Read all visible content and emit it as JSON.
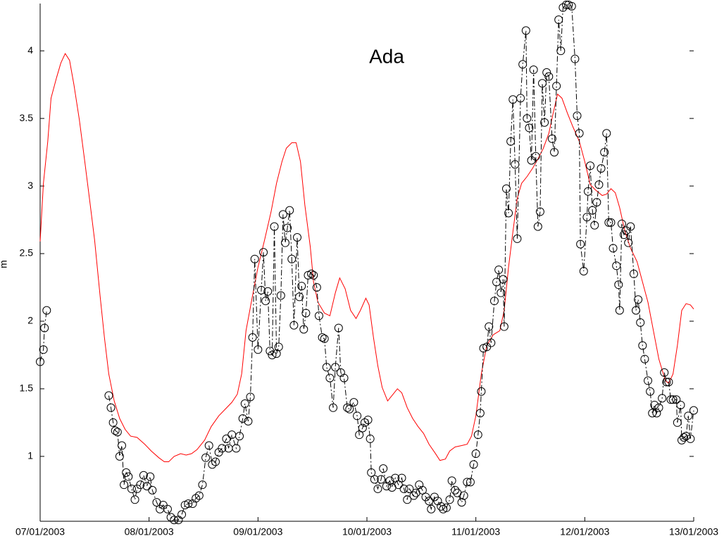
{
  "chart_data": {
    "type": "line",
    "title": "Ada",
    "y_label": "m",
    "xlim": [
      0,
      6
    ],
    "ylim": [
      0.52,
      4.35
    ],
    "xticks": [
      {
        "value": 0,
        "label": "07/01/2003"
      },
      {
        "value": 1,
        "label": "08/01/2003"
      },
      {
        "value": 2,
        "label": "09/01/2003"
      },
      {
        "value": 3,
        "label": "10/01/2003"
      },
      {
        "value": 4,
        "label": "11/01/2003"
      },
      {
        "value": 5,
        "label": "12/01/2003"
      },
      {
        "value": 6,
        "label": "13/01/2003"
      }
    ],
    "yticks": [
      1,
      1.5,
      2,
      2.5,
      3,
      3.5,
      4
    ],
    "series": [
      {
        "color": "#ff0000",
        "style": "solid",
        "marker": "none",
        "x": [
          0,
          0.03,
          0.07,
          0.1,
          0.15,
          0.19,
          0.23,
          0.27,
          0.31,
          0.36,
          0.41,
          0.46,
          0.5,
          0.55,
          0.59,
          0.63,
          0.68,
          0.73,
          0.78,
          0.83,
          0.89,
          0.96,
          1.02,
          1.09,
          1.14,
          1.18,
          1.23,
          1.29,
          1.34,
          1.39,
          1.44,
          1.51,
          1.57,
          1.64,
          1.7,
          1.76,
          1.81,
          1.85,
          1.89,
          1.95,
          2.0,
          2.06,
          2.12,
          2.17,
          2.22,
          2.26,
          2.31,
          2.35,
          2.39,
          2.43,
          2.48,
          2.51,
          2.55,
          2.61,
          2.66,
          2.71,
          2.75,
          2.8,
          2.85,
          2.9,
          2.94,
          2.99,
          3.02,
          3.06,
          3.1,
          3.14,
          3.19,
          3.23,
          3.28,
          3.32,
          3.37,
          3.42,
          3.47,
          3.52,
          3.57,
          3.63,
          3.67,
          3.72,
          3.76,
          3.81,
          3.87,
          3.92,
          3.96,
          4.0,
          4.05,
          4.1,
          4.16,
          4.22,
          4.26,
          4.3,
          4.34,
          4.38,
          4.42,
          4.47,
          4.52,
          4.57,
          4.62,
          4.67,
          4.71,
          4.75,
          4.79,
          4.84,
          4.89,
          4.95,
          5.0,
          5.05,
          5.1,
          5.16,
          5.2,
          5.24,
          5.28,
          5.32,
          5.37,
          5.42,
          5.48,
          5.53,
          5.58,
          5.63,
          5.68,
          5.74,
          5.77,
          5.81,
          5.85,
          5.89,
          5.93,
          5.97,
          6.0
        ],
        "values": [
          2.59,
          3.02,
          3.33,
          3.65,
          3.8,
          3.91,
          3.98,
          3.93,
          3.75,
          3.49,
          3.18,
          2.86,
          2.6,
          2.19,
          1.88,
          1.61,
          1.41,
          1.28,
          1.2,
          1.15,
          1.14,
          1.09,
          1.04,
          0.99,
          0.96,
          0.96,
          1.0,
          1.02,
          1.01,
          1.02,
          1.05,
          1.12,
          1.22,
          1.3,
          1.35,
          1.4,
          1.46,
          1.61,
          1.93,
          2.19,
          2.4,
          2.6,
          2.81,
          3.02,
          3.18,
          3.28,
          3.32,
          3.32,
          3.18,
          2.86,
          2.55,
          2.29,
          2.14,
          2.06,
          2.04,
          2.21,
          2.32,
          2.24,
          2.08,
          2.02,
          2.08,
          2.17,
          2.12,
          1.88,
          1.67,
          1.51,
          1.41,
          1.45,
          1.5,
          1.47,
          1.36,
          1.28,
          1.22,
          1.17,
          1.09,
          1.02,
          0.97,
          0.98,
          1.04,
          1.07,
          1.08,
          1.09,
          1.15,
          1.3,
          1.61,
          1.82,
          1.9,
          1.93,
          2.08,
          2.4,
          2.66,
          2.91,
          3.02,
          3.07,
          3.13,
          3.2,
          3.28,
          3.39,
          3.54,
          3.68,
          3.65,
          3.54,
          3.44,
          3.33,
          3.18,
          3.01,
          2.97,
          2.93,
          2.94,
          2.98,
          2.95,
          2.84,
          2.66,
          2.54,
          2.44,
          2.29,
          2.14,
          1.93,
          1.72,
          1.56,
          1.54,
          1.61,
          1.82,
          2.08,
          2.13,
          2.12,
          2.09
        ]
      },
      {
        "color": "#000000",
        "style": "dashdot",
        "marker": "circle",
        "x": [
          0,
          0.03,
          0.04,
          0.06,
          0.3,
          0.63,
          0.65,
          0.67,
          0.69,
          0.71,
          0.73,
          0.75,
          0.77,
          0.79,
          0.81,
          0.84,
          0.87,
          0.89,
          0.92,
          0.95,
          0.98,
          1.01,
          1.03,
          1.07,
          1.1,
          1.13,
          1.17,
          1.2,
          1.23,
          1.27,
          1.3,
          1.33,
          1.36,
          1.4,
          1.43,
          1.46,
          1.49,
          1.52,
          1.55,
          1.58,
          1.61,
          1.64,
          1.67,
          1.71,
          1.73,
          1.76,
          1.8,
          1.83,
          1.86,
          1.88,
          1.91,
          1.93,
          1.95,
          1.97,
          2.0,
          2.03,
          2.05,
          2.07,
          2.09,
          2.11,
          2.13,
          2.15,
          2.17,
          2.19,
          2.21,
          2.23,
          2.25,
          2.27,
          2.29,
          2.31,
          2.33,
          2.36,
          2.38,
          2.4,
          2.42,
          2.44,
          2.46,
          2.49,
          2.51,
          2.54,
          2.56,
          2.59,
          2.61,
          2.63,
          2.66,
          2.69,
          2.71,
          2.74,
          2.76,
          2.79,
          2.82,
          2.84,
          2.88,
          2.91,
          2.93,
          2.96,
          2.98,
          3.01,
          3.03,
          3.04,
          3.07,
          3.1,
          3.13,
          3.15,
          3.18,
          3.21,
          3.23,
          3.26,
          3.29,
          3.32,
          3.34,
          3.37,
          3.39,
          3.43,
          3.45,
          3.48,
          3.51,
          3.54,
          3.57,
          3.59,
          3.62,
          3.65,
          3.68,
          3.7,
          3.73,
          3.76,
          3.78,
          3.81,
          3.83,
          3.87,
          3.89,
          3.92,
          3.95,
          3.98,
          4.0,
          4.02,
          4.04,
          4.05,
          4.07,
          4.1,
          4.12,
          4.14,
          4.17,
          4.19,
          4.21,
          4.23,
          4.25,
          4.26,
          4.28,
          4.3,
          4.32,
          4.34,
          4.36,
          4.38,
          4.41,
          4.43,
          4.46,
          4.47,
          4.49,
          4.51,
          4.53,
          4.55,
          4.57,
          4.59,
          4.61,
          4.63,
          4.65,
          4.67,
          4.7,
          4.72,
          4.74,
          4.76,
          4.78,
          4.8,
          4.83,
          4.85,
          4.88,
          4.91,
          4.93,
          4.95,
          4.96,
          4.99,
          5.02,
          5.03,
          5.05,
          5.07,
          5.09,
          5.11,
          5.13,
          5.15,
          5.18,
          5.2,
          5.22,
          5.24,
          5.26,
          5.29,
          5.31,
          5.32,
          5.34,
          5.36,
          5.38,
          5.4,
          5.42,
          5.45,
          5.47,
          5.49,
          5.51,
          5.53,
          5.55,
          5.58,
          5.6,
          5.62,
          5.64,
          5.66,
          5.68,
          5.71,
          5.73,
          5.75,
          5.77,
          5.79,
          5.81,
          5.84,
          5.85,
          5.88,
          5.89,
          5.91,
          5.93,
          5.95,
          5.97,
          6.0
        ],
        "values": [
          1.7,
          1.79,
          1.95,
          2.08,
          null,
          1.45,
          1.36,
          1.25,
          1.19,
          1.18,
          1.0,
          1.08,
          0.79,
          0.88,
          0.85,
          0.76,
          0.68,
          0.76,
          0.79,
          0.86,
          0.78,
          0.85,
          0.75,
          0.66,
          0.61,
          0.64,
          0.61,
          0.55,
          0.53,
          0.53,
          0.57,
          0.64,
          0.65,
          0.65,
          0.69,
          0.71,
          0.79,
          0.99,
          1.08,
          0.94,
          0.96,
          1.03,
          1.06,
          1.13,
          1.06,
          1.16,
          1.06,
          1.15,
          1.28,
          1.39,
          1.26,
          1.44,
          1.88,
          2.46,
          1.79,
          2.23,
          2.51,
          2.15,
          2.22,
          1.78,
          1.75,
          2.7,
          1.76,
          1.81,
          2.19,
          2.79,
          2.58,
          2.69,
          2.82,
          2.46,
          1.97,
          2.62,
          2.18,
          2.26,
          1.94,
          2.06,
          2.34,
          2.35,
          2.34,
          2.25,
          2.04,
          1.88,
          1.87,
          1.66,
          1.58,
          1.36,
          1.66,
          1.95,
          1.62,
          1.58,
          1.36,
          1.35,
          1.4,
          1.3,
          1.16,
          1.21,
          1.25,
          1.27,
          1.13,
          0.88,
          0.83,
          0.76,
          0.83,
          0.91,
          0.78,
          0.82,
          0.77,
          0.84,
          0.79,
          0.84,
          0.76,
          0.68,
          0.76,
          0.71,
          0.73,
          0.79,
          0.75,
          0.7,
          0.67,
          0.61,
          0.7,
          0.67,
          0.63,
          0.61,
          0.62,
          0.68,
          0.82,
          0.75,
          0.73,
          0.66,
          0.71,
          0.81,
          0.81,
          0.94,
          1.02,
          1.16,
          1.32,
          1.48,
          1.8,
          1.81,
          1.96,
          1.84,
          2.15,
          2.29,
          2.38,
          2.21,
          2.31,
          1.96,
          2.98,
          2.8,
          3.33,
          3.64,
          3.16,
          2.61,
          3.65,
          3.9,
          4.15,
          3.5,
          3.43,
          3.19,
          3.86,
          3.22,
          2.7,
          2.81,
          3.76,
          3.47,
          3.84,
          3.81,
          3.35,
          3.25,
          3.74,
          4.23,
          4.0,
          4.32,
          4.34,
          4.34,
          4.33,
          3.94,
          3.52,
          3.39,
          2.57,
          2.37,
          2.77,
          2.96,
          3.15,
          2.82,
          2.71,
          2.88,
          3.01,
          3.13,
          3.25,
          3.39,
          2.73,
          2.73,
          2.54,
          2.41,
          2.27,
          2.08,
          2.72,
          2.64,
          2.67,
          2.58,
          2.7,
          2.35,
          2.08,
          2.16,
          1.99,
          1.82,
          1.72,
          1.56,
          1.48,
          1.32,
          1.38,
          1.32,
          1.36,
          1.43,
          1.62,
          1.55,
          1.55,
          1.42,
          1.42,
          1.42,
          1.25,
          1.38,
          1.12,
          1.14,
          1.15,
          1.3,
          1.13,
          1.34
        ]
      }
    ]
  }
}
